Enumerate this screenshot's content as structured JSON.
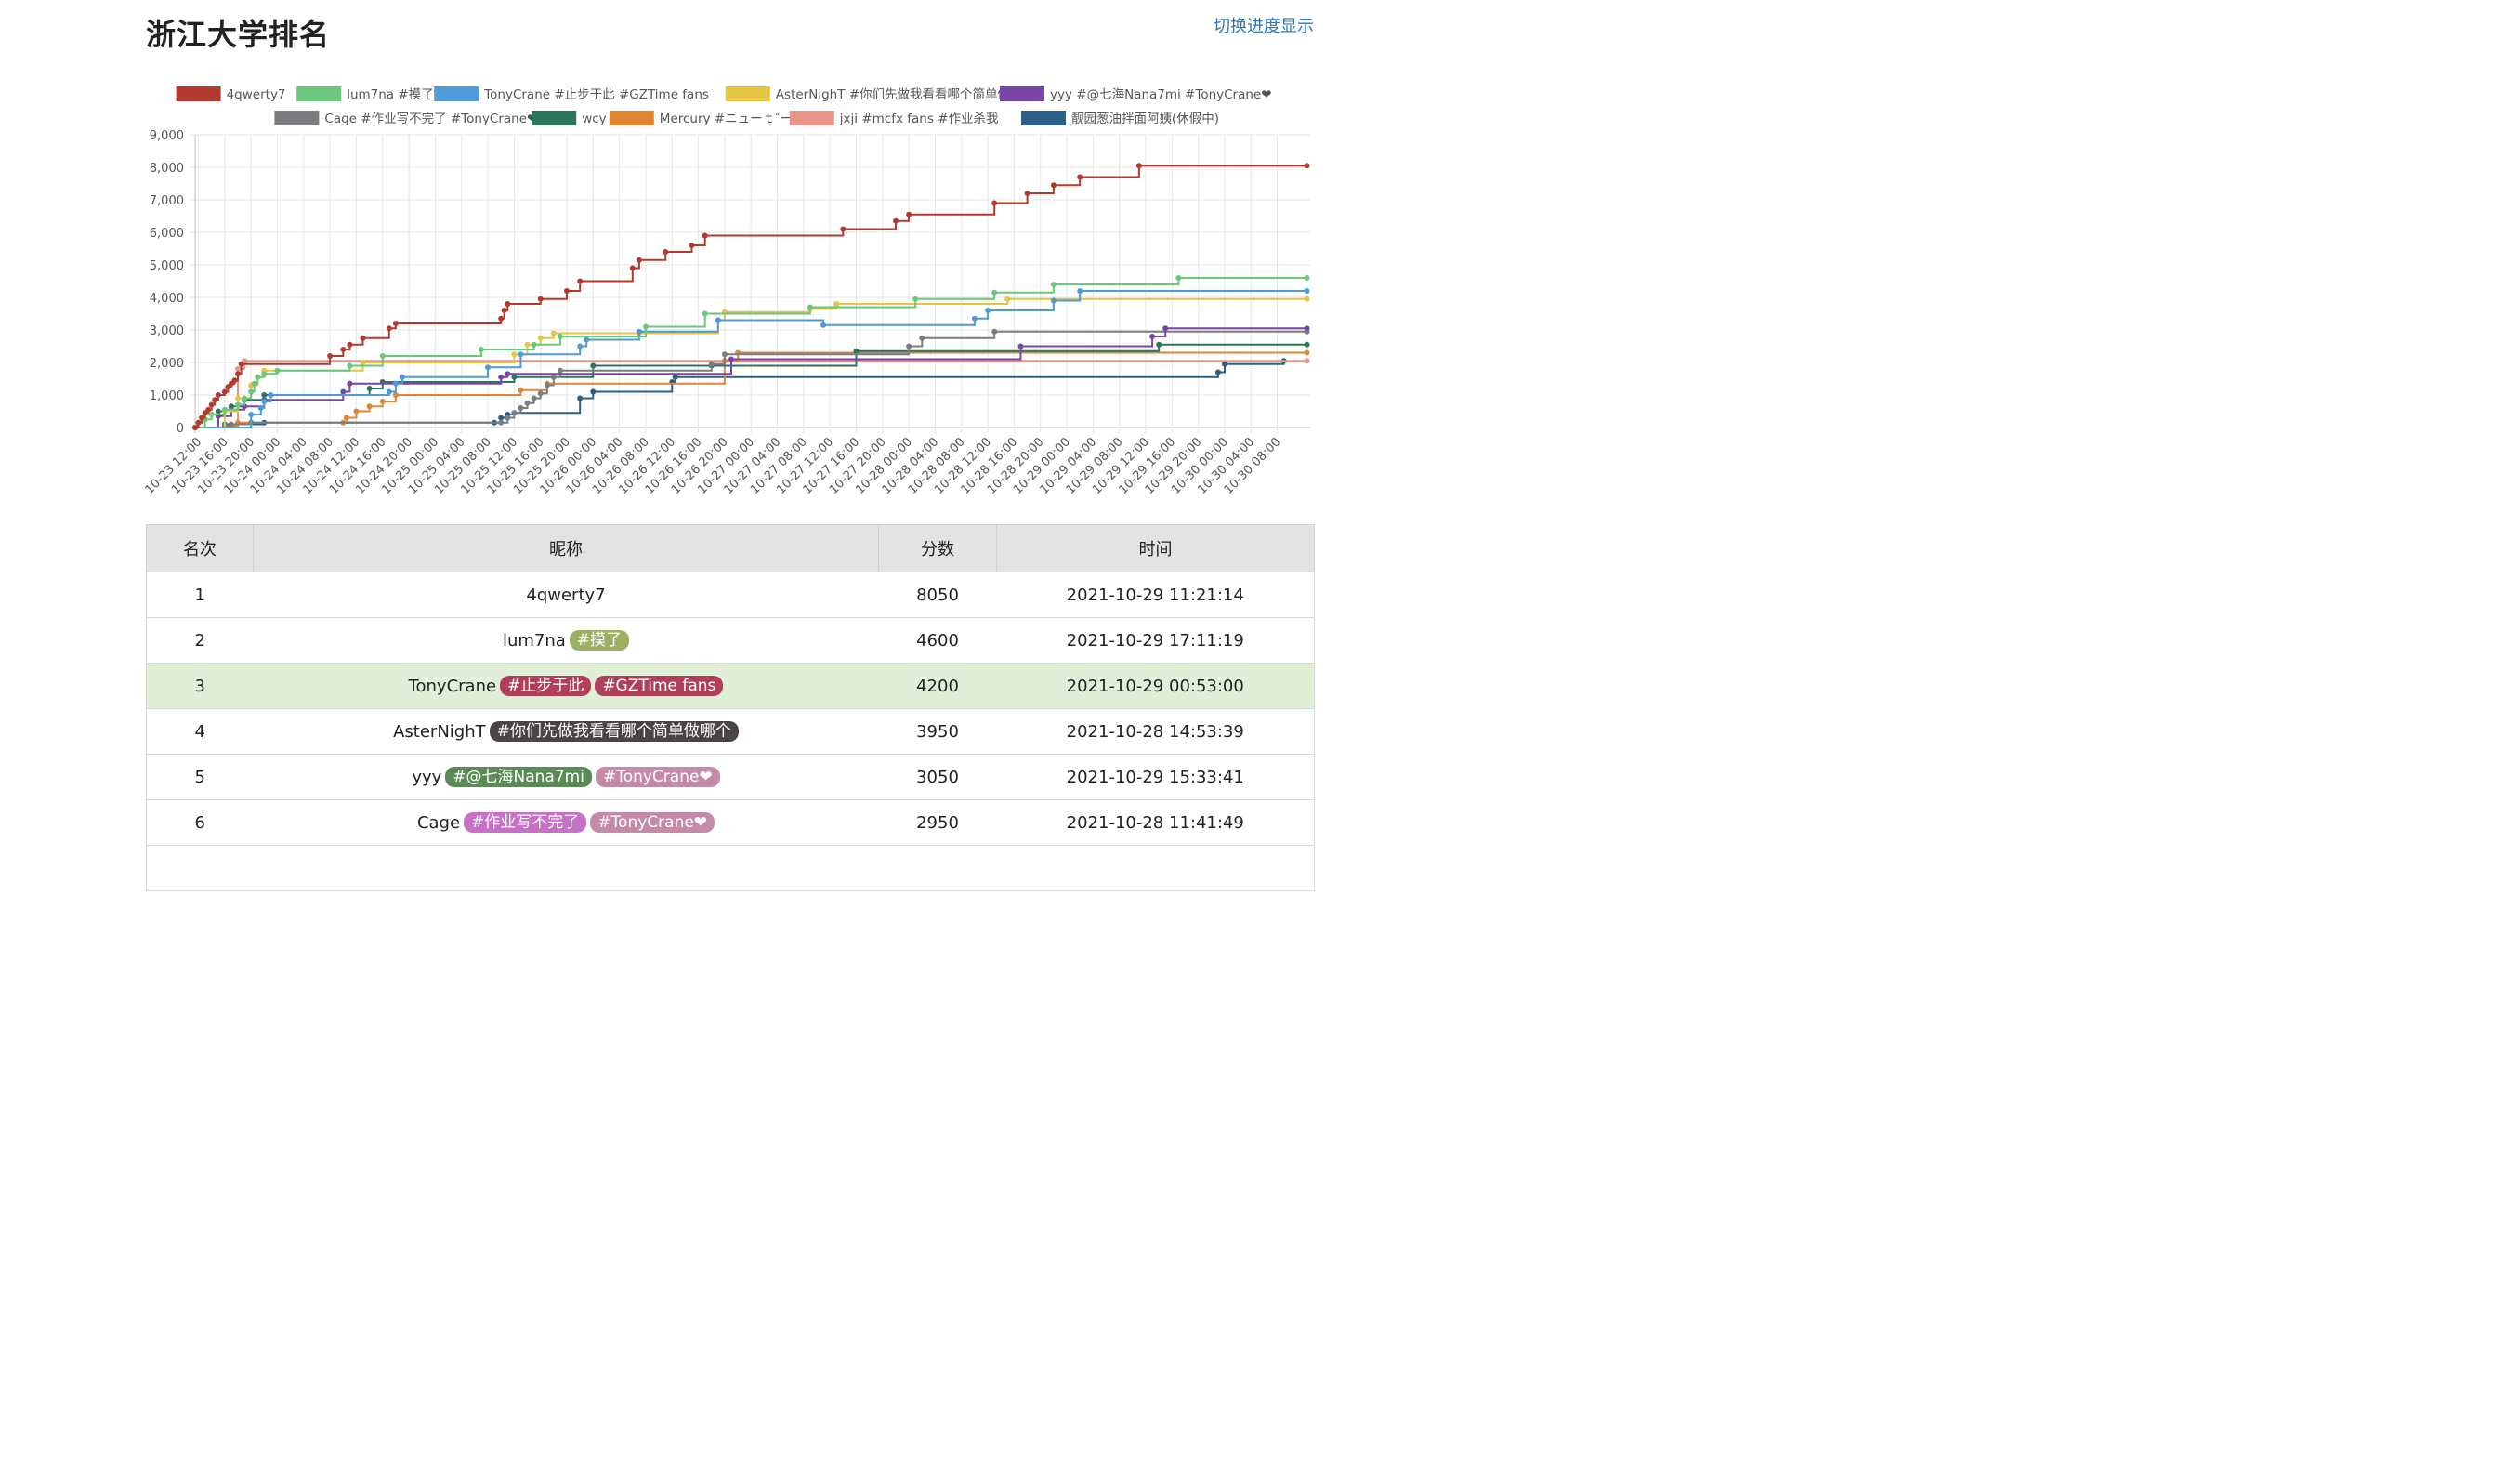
{
  "page": {
    "title": "浙江大学排名",
    "toggle_label": "切换进度显示"
  },
  "legend": [
    {
      "name": "4qwerty7",
      "color": "#b33a2e"
    },
    {
      "name": "lum7na #摸了",
      "color": "#6bc87a"
    },
    {
      "name": "TonyCrane #止步于此 #GZTime fans",
      "color": "#4f9ad8"
    },
    {
      "name": "AsterNighT #你们先做我看看哪个简单做哪个",
      "color": "#e6c545"
    },
    {
      "name": "yyy #@七海Nana7mi #TonyCrane❤",
      "color": "#7b44a8"
    },
    {
      "name": "Cage #作业写不完了 #TonyCrane❤",
      "color": "#7a7c80"
    },
    {
      "name": "wcy",
      "color": "#2e7560"
    },
    {
      "name": "Mercury #ニューｔ″ー",
      "color": "#e08537"
    },
    {
      "name": "jxji #mcfx fans #作业杀我",
      "color": "#e8968a"
    },
    {
      "name": "靓园葱油拌面阿姨(休假中)",
      "color": "#2c5f86"
    }
  ],
  "chart_data": {
    "type": "line",
    "step": true,
    "x_unit": "hours since 10-23 12:00",
    "x_ticks": [
      "10-23 12:00",
      "10-23 16:00",
      "10-23 20:00",
      "10-24 00:00",
      "10-24 04:00",
      "10-24 08:00",
      "10-24 12:00",
      "10-24 16:00",
      "10-24 20:00",
      "10-25 00:00",
      "10-25 04:00",
      "10-25 08:00",
      "10-25 12:00",
      "10-25 16:00",
      "10-25 20:00",
      "10-26 00:00",
      "10-26 04:00",
      "10-26 08:00",
      "10-26 12:00",
      "10-26 16:00",
      "10-26 20:00",
      "10-27 00:00",
      "10-27 04:00",
      "10-27 08:00",
      "10-27 12:00",
      "10-27 16:00",
      "10-27 20:00",
      "10-28 00:00",
      "10-28 04:00",
      "10-28 08:00",
      "10-28 12:00",
      "10-28 16:00",
      "10-28 20:00",
      "10-29 00:00",
      "10-29 04:00",
      "10-29 08:00",
      "10-29 12:00",
      "10-29 16:00",
      "10-29 20:00",
      "10-30 00:00",
      "10-30 04:00",
      "10-30 08:00"
    ],
    "y_ticks": [
      "0",
      "1,000",
      "2,000",
      "3,000",
      "4,000",
      "5,000",
      "6,000",
      "7,000",
      "8,000",
      "9,000"
    ],
    "ylim": [
      0,
      9000
    ],
    "xlim": [
      -0.5,
      169
    ],
    "grid": true,
    "legend_position": "top",
    "series": [
      {
        "name": "4qwerty7",
        "color": "#b33a2e",
        "points": [
          [
            -0.5,
            0
          ],
          [
            0,
            150
          ],
          [
            0.5,
            300
          ],
          [
            1,
            450
          ],
          [
            1.5,
            550
          ],
          [
            2,
            700
          ],
          [
            2.5,
            850
          ],
          [
            3,
            1000
          ],
          [
            4,
            1100
          ],
          [
            4.5,
            1250
          ],
          [
            5,
            1350
          ],
          [
            5.5,
            1450
          ],
          [
            6,
            1650
          ],
          [
            6.5,
            1950
          ],
          [
            20,
            2200
          ],
          [
            22,
            2400
          ],
          [
            23,
            2550
          ],
          [
            25,
            2750
          ],
          [
            29,
            3050
          ],
          [
            30,
            3200
          ],
          [
            46,
            3350
          ],
          [
            46.5,
            3600
          ],
          [
            47,
            3800
          ],
          [
            52,
            3950
          ],
          [
            56,
            4200
          ],
          [
            58,
            4500
          ],
          [
            66,
            4900
          ],
          [
            67,
            5150
          ],
          [
            71,
            5400
          ],
          [
            75,
            5600
          ],
          [
            77,
            5900
          ],
          [
            98,
            6100
          ],
          [
            106,
            6350
          ],
          [
            108,
            6550
          ],
          [
            121,
            6900
          ],
          [
            126,
            7200
          ],
          [
            130,
            7450
          ],
          [
            134,
            7700
          ],
          [
            143,
            8050
          ],
          [
            168.5,
            8050
          ]
        ]
      },
      {
        "name": "lum7na #摸了",
        "color": "#6bc87a",
        "points": [
          [
            -0.5,
            0
          ],
          [
            1,
            250
          ],
          [
            2,
            400
          ],
          [
            4,
            550
          ],
          [
            6,
            700
          ],
          [
            7,
            900
          ],
          [
            8,
            1100
          ],
          [
            8.5,
            1350
          ],
          [
            9,
            1550
          ],
          [
            10,
            1650
          ],
          [
            12,
            1750
          ],
          [
            23,
            1900
          ],
          [
            28,
            2200
          ],
          [
            43,
            2400
          ],
          [
            51,
            2550
          ],
          [
            55,
            2800
          ],
          [
            68,
            3100
          ],
          [
            77,
            3500
          ],
          [
            93,
            3700
          ],
          [
            109,
            3950
          ],
          [
            121,
            4150
          ],
          [
            130,
            4400
          ],
          [
            149,
            4600
          ],
          [
            168.5,
            4600
          ]
        ]
      },
      {
        "name": "TonyCrane #止步于此 #GZTime fans",
        "color": "#4f9ad8",
        "points": [
          [
            -0.5,
            0
          ],
          [
            8,
            400
          ],
          [
            9.5,
            600
          ],
          [
            10,
            800
          ],
          [
            11,
            1000
          ],
          [
            29,
            1100
          ],
          [
            30,
            1350
          ],
          [
            31,
            1550
          ],
          [
            44,
            1850
          ],
          [
            49,
            2250
          ],
          [
            58,
            2500
          ],
          [
            59,
            2700
          ],
          [
            67,
            2950
          ],
          [
            79,
            3300
          ],
          [
            95,
            3150
          ],
          [
            118,
            3350
          ],
          [
            120,
            3600
          ],
          [
            130,
            3900
          ],
          [
            134,
            4200
          ],
          [
            168.5,
            4200
          ]
        ]
      },
      {
        "name": "AsterNighT #你们先做我看看哪个简单做哪个",
        "color": "#e6c545",
        "points": [
          [
            -0.5,
            0
          ],
          [
            4,
            500
          ],
          [
            6,
            900
          ],
          [
            8,
            1300
          ],
          [
            9,
            1550
          ],
          [
            10,
            1750
          ],
          [
            25,
            2000
          ],
          [
            48,
            2250
          ],
          [
            50,
            2550
          ],
          [
            52,
            2750
          ],
          [
            54,
            2900
          ],
          [
            67,
            2900
          ],
          [
            79,
            3300
          ],
          [
            80,
            3550
          ],
          [
            93,
            3650
          ],
          [
            97,
            3800
          ],
          [
            123,
            3950
          ],
          [
            168.5,
            3950
          ]
        ]
      },
      {
        "name": "yyy #@七海Nana7mi #TonyCrane❤",
        "color": "#7b44a8",
        "points": [
          [
            -0.5,
            0
          ],
          [
            3,
            350
          ],
          [
            5,
            550
          ],
          [
            7,
            650
          ],
          [
            10,
            850
          ],
          [
            22,
            1100
          ],
          [
            23,
            1350
          ],
          [
            46,
            1550
          ],
          [
            47,
            1650
          ],
          [
            81,
            2100
          ],
          [
            125,
            2500
          ],
          [
            145,
            2800
          ],
          [
            147,
            3050
          ],
          [
            168.5,
            3050
          ]
        ]
      },
      {
        "name": "Cage #作业写不完了 #TonyCrane❤",
        "color": "#7a7c80",
        "points": [
          [
            -0.5,
            0
          ],
          [
            4,
            50
          ],
          [
            5,
            100
          ],
          [
            8,
            150
          ],
          [
            46,
            150
          ],
          [
            47,
            300
          ],
          [
            48,
            450
          ],
          [
            49,
            600
          ],
          [
            50,
            750
          ],
          [
            51,
            900
          ],
          [
            52,
            1050
          ],
          [
            53,
            1300
          ],
          [
            54,
            1550
          ],
          [
            55,
            1750
          ],
          [
            78,
            1950
          ],
          [
            80,
            2250
          ],
          [
            108,
            2500
          ],
          [
            110,
            2750
          ],
          [
            121,
            2950
          ],
          [
            168.5,
            2950
          ]
        ]
      },
      {
        "name": "wcy",
        "color": "#2e7560",
        "points": [
          [
            -0.5,
            0
          ],
          [
            3,
            500
          ],
          [
            5,
            650
          ],
          [
            7,
            850
          ],
          [
            10,
            1000
          ],
          [
            26,
            1200
          ],
          [
            28,
            1400
          ],
          [
            48,
            1550
          ],
          [
            60,
            1900
          ],
          [
            78,
            1900
          ],
          [
            100,
            2350
          ],
          [
            146,
            2550
          ],
          [
            168.5,
            2550
          ]
        ]
      },
      {
        "name": "Mercury #ニューｔ″ー",
        "color": "#e08537",
        "points": [
          [
            -0.5,
            0
          ],
          [
            4,
            50
          ],
          [
            6,
            150
          ],
          [
            22,
            150
          ],
          [
            22.5,
            300
          ],
          [
            24,
            500
          ],
          [
            26,
            650
          ],
          [
            28,
            800
          ],
          [
            30,
            1000
          ],
          [
            49,
            1150
          ],
          [
            53,
            1350
          ],
          [
            80,
            2050
          ],
          [
            82,
            2300
          ],
          [
            168.5,
            2300
          ]
        ]
      },
      {
        "name": "jxji #mcfx fans #作业杀我",
        "color": "#e8968a",
        "points": [
          [
            -0.5,
            0
          ],
          [
            6,
            1800
          ],
          [
            7,
            2050
          ],
          [
            168.5,
            2050
          ]
        ]
      },
      {
        "name": "靓园葱油拌面阿姨(休假中)",
        "color": "#2c5f86",
        "points": [
          [
            -0.5,
            0
          ],
          [
            4,
            100
          ],
          [
            10,
            150
          ],
          [
            45,
            150
          ],
          [
            46,
            300
          ],
          [
            47,
            400
          ],
          [
            48,
            450
          ],
          [
            58,
            900
          ],
          [
            60,
            1100
          ],
          [
            72,
            1400
          ],
          [
            72.5,
            1550
          ],
          [
            155,
            1700
          ],
          [
            156,
            1950
          ],
          [
            165,
            2050
          ]
        ]
      }
    ]
  },
  "table": {
    "headers": [
      "名次",
      "昵称",
      "分数",
      "时间"
    ],
    "rows": [
      {
        "rank": "1",
        "name": "4qwerty7",
        "tags": [],
        "score": "8050",
        "time": "2021-10-29 11:21:14",
        "highlight": false
      },
      {
        "rank": "2",
        "name": "lum7na",
        "tags": [
          {
            "text": "#摸了",
            "color": "#9bb060"
          }
        ],
        "score": "4600",
        "time": "2021-10-29 17:11:19",
        "highlight": false
      },
      {
        "rank": "3",
        "name": "TonyCrane",
        "tags": [
          {
            "text": "#止步于此",
            "color": "#b0405a"
          },
          {
            "text": "#GZTime fans",
            "color": "#b0405a"
          }
        ],
        "score": "4200",
        "time": "2021-10-29 00:53:00",
        "highlight": true
      },
      {
        "rank": "4",
        "name": "AsterNighT",
        "tags": [
          {
            "text": "#你们先做我看看哪个简单做哪个",
            "color": "#4a4447"
          }
        ],
        "score": "3950",
        "time": "2021-10-28 14:53:39",
        "highlight": false
      },
      {
        "rank": "5",
        "name": "yyy",
        "tags": [
          {
            "text": "#@七海Nana7mi",
            "color": "#5a8a55"
          },
          {
            "text": "#TonyCrane❤",
            "color": "#c48aa8"
          }
        ],
        "score": "3050",
        "time": "2021-10-29 15:33:41",
        "highlight": false
      },
      {
        "rank": "6",
        "name": "Cage",
        "tags": [
          {
            "text": "#作业写不完了",
            "color": "#c670c6"
          },
          {
            "text": "#TonyCrane❤",
            "color": "#c48aa8"
          }
        ],
        "score": "2950",
        "time": "2021-10-28 11:41:49",
        "highlight": false
      },
      {
        "rank": "",
        "name": "",
        "tags": [],
        "score": "",
        "time": "",
        "highlight": false
      }
    ]
  }
}
